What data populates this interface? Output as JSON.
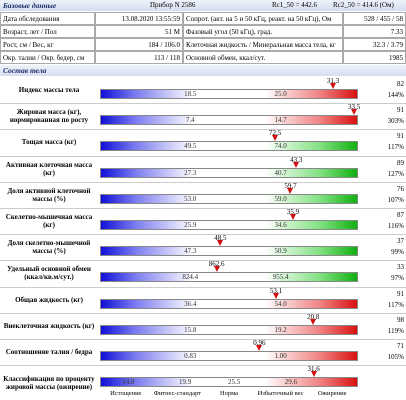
{
  "header": {
    "title": "Базовые данные",
    "device": "Прибор N 2586",
    "rc1": "Rc1_50 = 442.6",
    "rc2": "Rc2_50 = 414.6 (Ом)"
  },
  "table": {
    "rows": [
      [
        "Дата обследования",
        "13.08.2020 13:55:59",
        "Сопрот. (акт. на 5 и 50 кГц, реакт. на 50 кГц), Ом",
        "528 / 455 / 58"
      ],
      [
        "Возраст, лет / Пол",
        "51 M",
        "Фазовый угол (50 кГц), град.",
        "7.33"
      ],
      [
        "Рост, см / Вес, кг",
        "184 / 106.0",
        "Клеточная жидкость / Минеральная масса тела, кг",
        "32.3 / 3.79"
      ],
      [
        "Окр. талии / Окр. бедер, см",
        "113 / 118",
        "Основной обмен, ккал/сут.",
        "1985"
      ]
    ]
  },
  "section_title": "Состав тела",
  "indicators": [
    {
      "label": "Индекс массы тела",
      "value": 31.3,
      "scale": [
        18.5,
        {
          "value": 25,
          "label": "25.0"
        }
      ],
      "score": 82,
      "percent": "144%",
      "color": "red"
    },
    {
      "label": "Жировая масса (кг), нормированная по росту",
      "value": 33.5,
      "scale": [
        7.4,
        14.7
      ],
      "score": 91,
      "percent": "303%",
      "color": "red"
    },
    {
      "label": "Тощая масса (кг)",
      "value": 72.5,
      "scale": [
        49.5,
        {
          "value": 74,
          "label": "74.0"
        }
      ],
      "score": 91,
      "percent": "117%",
      "color": "green"
    },
    {
      "label": "Активная клеточная масса (кг)",
      "value": 43.3,
      "scale": [
        27.3,
        40.7
      ],
      "score": 89,
      "percent": "127%",
      "color": "green"
    },
    {
      "label": "Доля активной клеточной массы (%)",
      "value": 59.7,
      "scale": [
        {
          "value": 53,
          "label": "53.0"
        },
        {
          "value": 59,
          "label": "59.0"
        }
      ],
      "score": 76,
      "percent": "107%",
      "color": "green"
    },
    {
      "label": "Скелетно-мышечная масса (кг)",
      "value": 35.9,
      "scale": [
        25.9,
        34.6
      ],
      "score": 87,
      "percent": "116%",
      "color": "green"
    },
    {
      "label": "Доля скелетно-мышечной массы (%)",
      "value": 48.5,
      "scale": [
        47.3,
        50.9
      ],
      "score": 37,
      "percent": "99%",
      "color": "green"
    },
    {
      "label": "Удельный основной обмен (ккал/кв.м/сут.)",
      "value": 862.6,
      "scale": [
        824.4,
        955.4
      ],
      "score": 33,
      "percent": "97%",
      "color": "green"
    },
    {
      "label": "Общая жидкость (кг)",
      "value": 53.1,
      "scale": [
        36.4,
        {
          "value": 54,
          "label": "54.0"
        }
      ],
      "score": 91,
      "percent": "117%",
      "color": "red"
    },
    {
      "label": "Внеклеточная жидкость (кг)",
      "value": 20.8,
      "scale": [
        15.8,
        19.2
      ],
      "score": 98,
      "percent": "119%",
      "color": "red"
    },
    {
      "label": "Соотношение талия / бедра",
      "value": 0.96,
      "scale": [
        0.83,
        {
          "value": 1,
          "label": "1.00"
        }
      ],
      "score": 71,
      "percent": "105%",
      "color": "red"
    },
    {
      "label": "Классификация по проценту жировой массы (ожирение)",
      "value": 31.6,
      "scale": [
        14.8,
        19.9,
        25.5,
        29.6
      ],
      "color": "red"
    }
  ],
  "classes": [
    "Истощение",
    "Фитнес-стандарт",
    "Норма",
    "Избыточный вес",
    "Ожирение"
  ]
}
